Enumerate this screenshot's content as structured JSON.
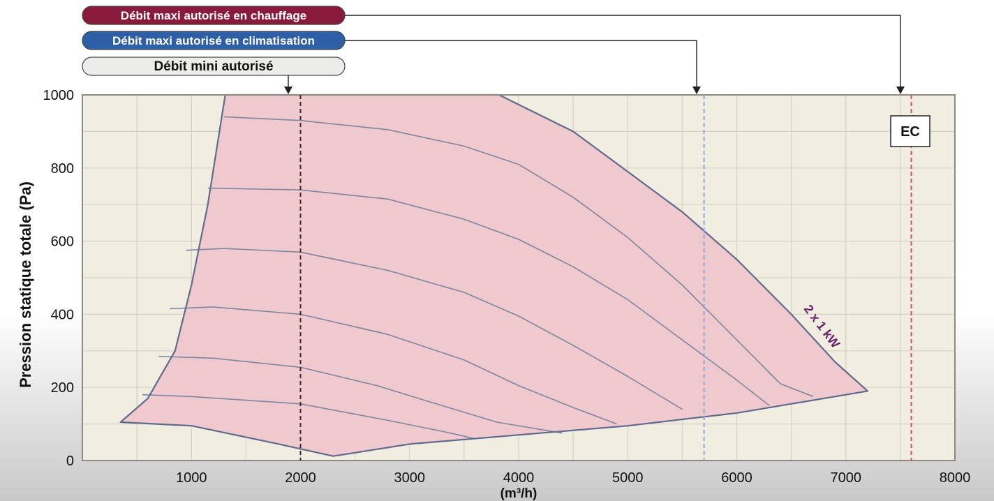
{
  "chart_data": {
    "type": "area",
    "title": "",
    "xlabel": "(m³/h)",
    "ylabel": "Pression statique totale (Pa)",
    "xlim": [
      0,
      8000
    ],
    "ylim": [
      0,
      1000
    ],
    "x_ticks": [
      1000,
      2000,
      3000,
      4000,
      5000,
      6000,
      7000,
      8000
    ],
    "y_ticks": [
      0,
      200,
      400,
      600,
      800,
      1000
    ],
    "grid": true,
    "operating_zone": {
      "color": "#efc9cd",
      "outline_color": "#5f6b8c",
      "label": "2 x 1 kW",
      "label_color": "#6b1f6e",
      "boundary": [
        [
          1310,
          1000
        ],
        [
          3820,
          1000
        ],
        [
          4500,
          900
        ],
        [
          5000,
          790
        ],
        [
          5500,
          680
        ],
        [
          6000,
          550
        ],
        [
          6500,
          400
        ],
        [
          6900,
          270
        ],
        [
          7200,
          190
        ],
        [
          6000,
          130
        ],
        [
          5000,
          95
        ],
        [
          4000,
          70
        ],
        [
          3000,
          45
        ],
        [
          2300,
          12
        ],
        [
          1800,
          45
        ],
        [
          1000,
          95
        ],
        [
          350,
          105
        ],
        [
          600,
          170
        ],
        [
          850,
          300
        ],
        [
          1000,
          480
        ],
        [
          1150,
          700
        ],
        [
          1310,
          1000
        ]
      ]
    },
    "fan_curves": [
      [
        [
          1300,
          940
        ],
        [
          2000,
          930
        ],
        [
          2800,
          905
        ],
        [
          3500,
          860
        ],
        [
          4000,
          810
        ],
        [
          4500,
          720
        ],
        [
          5000,
          610
        ],
        [
          5500,
          480
        ],
        [
          6000,
          330
        ],
        [
          6400,
          210
        ],
        [
          6700,
          175
        ]
      ],
      [
        [
          1150,
          745
        ],
        [
          2000,
          740
        ],
        [
          2800,
          715
        ],
        [
          3500,
          660
        ],
        [
          4000,
          605
        ],
        [
          4500,
          530
        ],
        [
          5000,
          440
        ],
        [
          5500,
          330
        ],
        [
          6000,
          220
        ],
        [
          6300,
          150
        ]
      ],
      [
        [
          950,
          575
        ],
        [
          1300,
          580
        ],
        [
          2000,
          570
        ],
        [
          2800,
          520
        ],
        [
          3500,
          460
        ],
        [
          4000,
          395
        ],
        [
          4500,
          315
        ],
        [
          5000,
          230
        ],
        [
          5500,
          140
        ]
      ],
      [
        [
          800,
          415
        ],
        [
          1200,
          420
        ],
        [
          2000,
          400
        ],
        [
          2800,
          345
        ],
        [
          3500,
          275
        ],
        [
          4000,
          205
        ],
        [
          4500,
          145
        ],
        [
          4900,
          100
        ]
      ],
      [
        [
          700,
          285
        ],
        [
          1200,
          280
        ],
        [
          2000,
          255
        ],
        [
          2700,
          205
        ],
        [
          3300,
          150
        ],
        [
          3800,
          105
        ],
        [
          4400,
          75
        ]
      ],
      [
        [
          550,
          180
        ],
        [
          1000,
          175
        ],
        [
          2000,
          155
        ],
        [
          2800,
          110
        ],
        [
          3300,
          80
        ],
        [
          3600,
          60
        ]
      ]
    ],
    "reference_lines": [
      {
        "label": "Débit maxi autorisé en chauffage",
        "x": 7600,
        "color": "#d94a63",
        "badge_color": "#8a1a3c",
        "text_color": "#ffffff"
      },
      {
        "label": "Débit maxi autorisé en climatisation",
        "x": 5700,
        "color": "#8fa6d8",
        "badge_color": "#2d5ea6",
        "text_color": "#ffffff"
      },
      {
        "label": "Débit mini autorisé",
        "x": 2000,
        "color": "#3a2a2a",
        "badge_color": "#ececea",
        "text_color": "#111111"
      }
    ],
    "annotations": [
      {
        "text": "EC",
        "position": "top-right"
      }
    ],
    "plot_background": "#f1eee1",
    "grid_color": "#d5d2c4"
  }
}
